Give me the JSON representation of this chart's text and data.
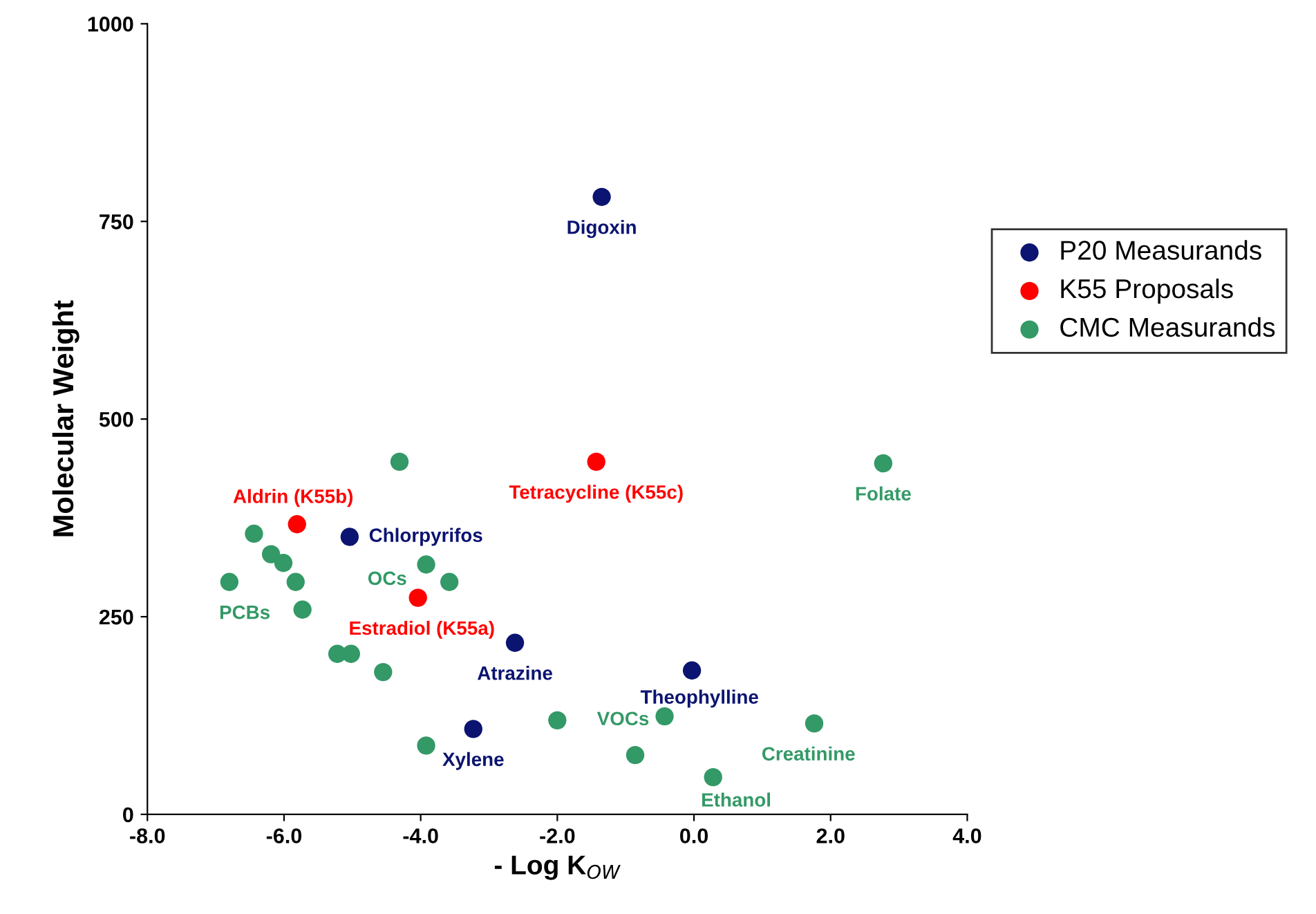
{
  "chart_data": {
    "type": "scatter",
    "xlabel": "- Log K$_{OW}$",
    "ylabel": "Molecular Weight",
    "xlim": [
      -8,
      4
    ],
    "ylim": [
      0,
      1000
    ],
    "xticks": [
      {
        "value": -8,
        "label": "-8.0"
      },
      {
        "value": -6,
        "label": "-6.0"
      },
      {
        "value": -4,
        "label": "-4.0"
      },
      {
        "value": -2,
        "label": "-2.0"
      },
      {
        "value": 0,
        "label": "0.0"
      },
      {
        "value": 2,
        "label": "2.0"
      },
      {
        "value": 4,
        "label": "4.0"
      }
    ],
    "yticks": [
      0,
      250,
      500,
      750,
      1000
    ],
    "grid": false,
    "legend": "right",
    "marker": "circle",
    "series": [
      {
        "name": "P20 Measurands",
        "color": "#0b1470",
        "x": [
          -1.35,
          -5.04,
          -2.62,
          -0.03,
          -3.23
        ],
        "values": [
          781,
          351,
          217,
          182,
          108
        ]
      },
      {
        "name": "K55 Proposals",
        "color": "#ff0000",
        "x": [
          -5.81,
          -1.43,
          -4.04
        ],
        "values": [
          367,
          446,
          274
        ]
      },
      {
        "name": "CMC Measurands",
        "color": "#339966",
        "x": [
          -4.31,
          2.77,
          -6.44,
          -6.19,
          -6.01,
          -6.8,
          -5.83,
          -5.73,
          -3.92,
          -3.58,
          -5.22,
          -5.02,
          -4.55,
          -3.92,
          -2.0,
          -0.86,
          -0.43,
          0.28,
          1.76
        ],
        "values": [
          446,
          444,
          355,
          329,
          318,
          294,
          294,
          259,
          316,
          294,
          203,
          203,
          180,
          87,
          119,
          75,
          124,
          47,
          115
        ]
      }
    ],
    "annotations": [
      {
        "text": "Digoxin",
        "x": -1.35,
        "y": 781
      },
      {
        "text": "Chlorpyrifos",
        "x": -5.04,
        "y": 351
      },
      {
        "text": "Atrazine",
        "x": -2.62,
        "y": 217
      },
      {
        "text": "Theophylline",
        "x": -0.03,
        "y": 182
      },
      {
        "text": "Xylene",
        "x": -3.23,
        "y": 108
      },
      {
        "text": "Aldrin (K55b)",
        "x": -5.81,
        "y": 367
      },
      {
        "text": "Tetracycline (K55c)",
        "x": -1.43,
        "y": 446
      },
      {
        "text": "Estradiol (K55a)",
        "x": -4.04,
        "y": 274
      },
      {
        "text": "Folate",
        "x": 2.77,
        "y": 444
      },
      {
        "text": "PCBs",
        "x": -6.8,
        "y": 294
      },
      {
        "text": "OCs",
        "x": -3.92,
        "y": 316
      },
      {
        "text": "VOCs",
        "x": -0.43,
        "y": 124
      },
      {
        "text": "Ethanol",
        "x": 0.28,
        "y": 47
      },
      {
        "text": "Creatinine",
        "x": 1.76,
        "y": 115
      }
    ]
  }
}
